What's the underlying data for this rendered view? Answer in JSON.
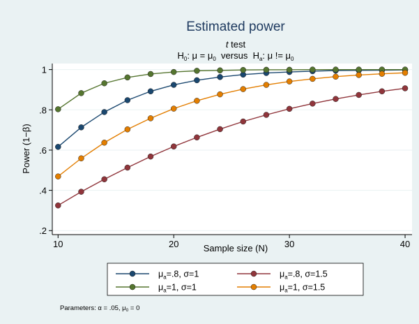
{
  "chart_data": {
    "type": "line",
    "title": "Estimated power",
    "subtitle": {
      "t": "t",
      "test": " test"
    },
    "hypotheses": {
      "H0_H": "H",
      "H0_sub": "0",
      "H0_rest1": ": μ = μ",
      "H0_mu_sub": "0",
      "versus": "  versus  ",
      "Ha_H": "H",
      "Ha_sub": "a",
      "Ha_rest1": ": μ != μ",
      "Ha_mu_sub": "0"
    },
    "xlabel": "Sample size (N)",
    "ylabel": "Power (1−β)",
    "xlim": [
      9.5,
      40.6
    ],
    "ylim": [
      0.18,
      1.03
    ],
    "xticks": [
      10,
      20,
      30,
      40
    ],
    "xtick_labels": [
      "10",
      "20",
      "30",
      "40"
    ],
    "yticks": [
      0.2,
      0.4,
      0.6,
      0.8,
      1.0
    ],
    "ytick_labels": [
      ".2",
      ".4",
      ".6",
      ".8",
      "1"
    ],
    "grid": true,
    "x": [
      10,
      12,
      14,
      16,
      18,
      20,
      22,
      24,
      26,
      28,
      30,
      32,
      34,
      36,
      38,
      40
    ],
    "series": [
      {
        "legend": {
          "mu": "μ",
          "mu_sub": "a",
          "rest": "=.8, σ=1"
        },
        "color": "#1a476f",
        "values": [
          0.616,
          0.713,
          0.789,
          0.848,
          0.892,
          0.924,
          0.947,
          0.963,
          0.975,
          0.983,
          0.988,
          0.992,
          0.995,
          0.996,
          0.997,
          0.998
        ]
      },
      {
        "legend": {
          "mu": "μ",
          "mu_sub": "a",
          "rest": "=.8, σ=1.5"
        },
        "color": "#90353b",
        "values": [
          0.325,
          0.393,
          0.455,
          0.513,
          0.568,
          0.618,
          0.663,
          0.704,
          0.742,
          0.775,
          0.805,
          0.831,
          0.854,
          0.874,
          0.892,
          0.907
        ]
      },
      {
        "legend": {
          "mu": "μ",
          "mu_sub": "a",
          "rest": "=1, σ=1"
        },
        "color": "#55752f",
        "values": [
          0.803,
          0.883,
          0.932,
          0.961,
          0.978,
          0.988,
          0.994,
          0.996,
          0.998,
          0.999,
          0.999,
          1.0,
          1.0,
          1.0,
          1.0,
          1.0
        ]
      },
      {
        "legend": {
          "mu": "μ",
          "mu_sub": "a",
          "rest": "=1, σ=1.5"
        },
        "color": "#e37e00",
        "values": [
          0.469,
          0.559,
          0.637,
          0.703,
          0.758,
          0.806,
          0.845,
          0.877,
          0.903,
          0.924,
          0.941,
          0.954,
          0.965,
          0.973,
          0.979,
          0.984
        ]
      }
    ],
    "legend_layout": "bottom-center, 2 columns",
    "note": {
      "prefix": "Parameters: α = .05, μ",
      "mu_sub": "0",
      "suffix": " = 0"
    },
    "colors": {
      "background": "#eaf2f3",
      "plot_background": "#ffffff",
      "grid": "#eaf2f3",
      "title": "#1e3a5f"
    }
  }
}
